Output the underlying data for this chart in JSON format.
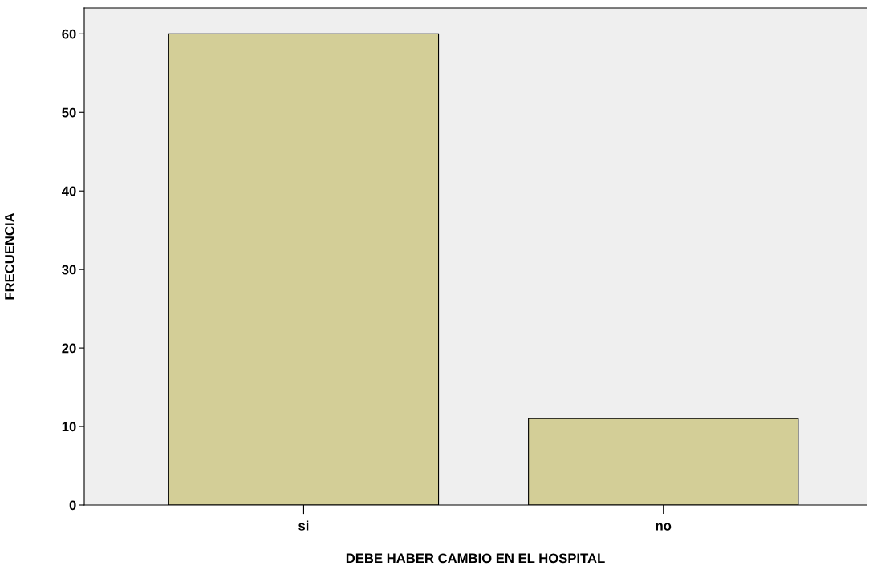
{
  "chart_data": {
    "type": "bar",
    "xlabel": "DEBE HABER CAMBIO EN EL HOSPITAL",
    "ylabel": "FRECUENCIA",
    "categories": [
      "si",
      "no"
    ],
    "values": [
      60,
      11
    ],
    "color": "#d3ce97",
    "ylim": [
      0,
      63.3
    ],
    "yticks": [
      0,
      10,
      20,
      30,
      40,
      50,
      60
    ],
    "grid": false
  }
}
